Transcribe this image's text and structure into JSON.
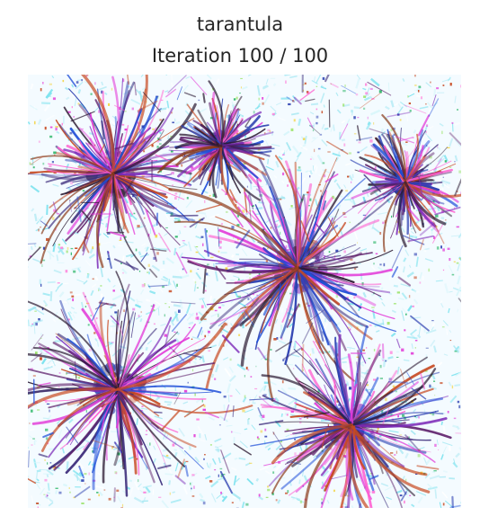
{
  "figure": {
    "title_line1": "tarantula",
    "title_line2": "Iteration 100 / 100"
  },
  "image": {
    "subject": "tarantula",
    "palette": [
      "#f4fbff",
      "#7fe3ef",
      "#b9ecf6",
      "#2b3fb0",
      "#7c2ab8",
      "#e23ad8",
      "#c74a22",
      "#2a1830",
      "#2fb76a",
      "#f2d23a"
    ]
  }
}
